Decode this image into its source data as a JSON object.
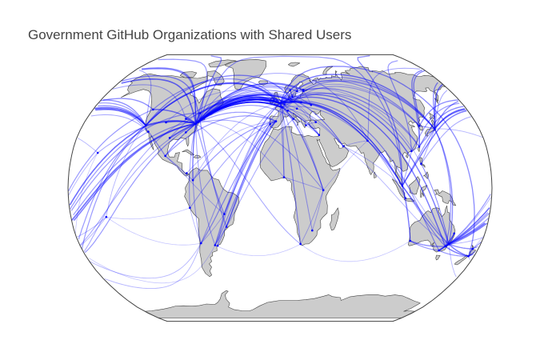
{
  "title": "Government GitHub Organizations with Shared Users",
  "colors": {
    "background": "#ffffff",
    "land": "#cccccc",
    "coastline": "#444444",
    "ocean": "#ffffff",
    "edge": "#0000ff",
    "node": "#0000ff",
    "title": "#444444"
  },
  "chart_data": {
    "type": "network-map",
    "projection": "robinson",
    "title": "Government GitHub Organizations with Shared Users",
    "edge_color": "#0000ff",
    "nodes": [
      {
        "id": "ottawa",
        "lon": -75.7,
        "lat": 45.4
      },
      {
        "id": "washington",
        "lon": -77.0,
        "lat": 38.9
      },
      {
        "id": "new-york",
        "lon": -74.0,
        "lat": 40.7
      },
      {
        "id": "boston",
        "lon": -71.1,
        "lat": 42.4
      },
      {
        "id": "chicago",
        "lon": -87.6,
        "lat": 41.9
      },
      {
        "id": "atlanta",
        "lon": -84.4,
        "lat": 33.7
      },
      {
        "id": "austin",
        "lon": -97.7,
        "lat": 30.3
      },
      {
        "id": "denver",
        "lon": -104.9,
        "lat": 39.7
      },
      {
        "id": "san-francisco",
        "lon": -122.4,
        "lat": 37.8
      },
      {
        "id": "los-angeles",
        "lon": -118.2,
        "lat": 34.1
      },
      {
        "id": "seattle",
        "lon": -122.3,
        "lat": 47.6
      },
      {
        "id": "honolulu",
        "lon": -157.9,
        "lat": 21.3
      },
      {
        "id": "mexico-city",
        "lon": -99.1,
        "lat": 19.4
      },
      {
        "id": "panama",
        "lon": -79.5,
        "lat": 9.0
      },
      {
        "id": "bogota",
        "lon": -74.1,
        "lat": 4.7
      },
      {
        "id": "lima",
        "lon": -77.0,
        "lat": -12.0
      },
      {
        "id": "brasilia",
        "lon": -47.9,
        "lat": -15.8
      },
      {
        "id": "sao-paulo",
        "lon": -46.6,
        "lat": -23.5
      },
      {
        "id": "santiago",
        "lon": -70.7,
        "lat": -33.4
      },
      {
        "id": "buenos-aires",
        "lon": -58.4,
        "lat": -34.6
      },
      {
        "id": "montevideo",
        "lon": -56.2,
        "lat": -34.9
      },
      {
        "id": "pacific",
        "lon": -149.6,
        "lat": -17.5
      },
      {
        "id": "london",
        "lon": -0.1,
        "lat": 51.5
      },
      {
        "id": "dublin",
        "lon": -6.3,
        "lat": 53.3
      },
      {
        "id": "paris",
        "lon": 2.35,
        "lat": 48.9
      },
      {
        "id": "brussels",
        "lon": 4.35,
        "lat": 50.85
      },
      {
        "id": "amsterdam",
        "lon": 4.9,
        "lat": 52.4
      },
      {
        "id": "berlin",
        "lon": 13.4,
        "lat": 52.5
      },
      {
        "id": "copenhagen",
        "lon": 12.6,
        "lat": 55.7
      },
      {
        "id": "oslo",
        "lon": 10.75,
        "lat": 59.9
      },
      {
        "id": "stockholm",
        "lon": 18.1,
        "lat": 59.3
      },
      {
        "id": "helsinki",
        "lon": 24.9,
        "lat": 60.2
      },
      {
        "id": "tallinn",
        "lon": 24.75,
        "lat": 59.4
      },
      {
        "id": "warsaw",
        "lon": 21.0,
        "lat": 52.2
      },
      {
        "id": "vienna",
        "lon": 16.4,
        "lat": 48.2
      },
      {
        "id": "bern",
        "lon": 7.45,
        "lat": 46.9
      },
      {
        "id": "madrid",
        "lon": -3.7,
        "lat": 40.4
      },
      {
        "id": "lisbon",
        "lon": -9.1,
        "lat": 38.7
      },
      {
        "id": "rome",
        "lon": 12.5,
        "lat": 41.9
      },
      {
        "id": "athens",
        "lon": 23.7,
        "lat": 38.0
      },
      {
        "id": "kyiv",
        "lon": 30.5,
        "lat": 50.45
      },
      {
        "id": "ankara",
        "lon": 32.9,
        "lat": 39.9
      },
      {
        "id": "tel-aviv",
        "lon": 34.8,
        "lat": 32.1
      },
      {
        "id": "dubai",
        "lon": 55.3,
        "lat": 25.2
      },
      {
        "id": "nairobi",
        "lon": 36.8,
        "lat": -1.3
      },
      {
        "id": "cape-town",
        "lon": 18.4,
        "lat": -33.9
      },
      {
        "id": "pretoria",
        "lon": 28.2,
        "lat": -25.7
      },
      {
        "id": "lagos",
        "lon": 3.4,
        "lat": 6.5
      },
      {
        "id": "delhi",
        "lon": 77.2,
        "lat": 28.6
      },
      {
        "id": "singapore",
        "lon": 103.8,
        "lat": 1.35
      },
      {
        "id": "jakarta",
        "lon": 106.8,
        "lat": -6.2
      },
      {
        "id": "manila",
        "lon": 121.0,
        "lat": 14.6
      },
      {
        "id": "hong-kong",
        "lon": 114.2,
        "lat": 22.3
      },
      {
        "id": "taipei",
        "lon": 121.5,
        "lat": 25.0
      },
      {
        "id": "seoul",
        "lon": 127.0,
        "lat": 37.6
      },
      {
        "id": "tokyo",
        "lon": 139.7,
        "lat": 35.7
      },
      {
        "id": "perth",
        "lon": 115.9,
        "lat": -31.95
      },
      {
        "id": "brisbane",
        "lon": 153.0,
        "lat": -27.5
      },
      {
        "id": "sydney",
        "lon": 151.2,
        "lat": -33.9
      },
      {
        "id": "canberra",
        "lon": 149.1,
        "lat": -35.3
      },
      {
        "id": "melbourne",
        "lon": 144.96,
        "lat": -37.8
      },
      {
        "id": "auckland",
        "lon": 174.8,
        "lat": -36.85
      },
      {
        "id": "wellington",
        "lon": 174.8,
        "lat": -41.3
      }
    ],
    "edges": [
      [
        "washington",
        "london",
        1.0
      ],
      [
        "washington",
        "paris",
        0.9
      ],
      [
        "washington",
        "berlin",
        0.8
      ],
      [
        "washington",
        "brussels",
        0.8
      ],
      [
        "washington",
        "amsterdam",
        0.7
      ],
      [
        "washington",
        "helsinki",
        0.7
      ],
      [
        "washington",
        "stockholm",
        0.6
      ],
      [
        "washington",
        "madrid",
        0.5
      ],
      [
        "washington",
        "rome",
        0.5
      ],
      [
        "washington",
        "tallinn",
        0.5
      ],
      [
        "washington",
        "tokyo",
        0.8
      ],
      [
        "washington",
        "seoul",
        0.6
      ],
      [
        "washington",
        "taipei",
        0.6
      ],
      [
        "washington",
        "singapore",
        0.6
      ],
      [
        "washington",
        "canberra",
        0.7
      ],
      [
        "washington",
        "sydney",
        0.8
      ],
      [
        "washington",
        "wellington",
        0.5
      ],
      [
        "washington",
        "auckland",
        0.4
      ],
      [
        "washington",
        "delhi",
        0.4
      ],
      [
        "washington",
        "nairobi",
        0.4
      ],
      [
        "washington",
        "cape-town",
        0.4
      ],
      [
        "washington",
        "brasilia",
        0.5
      ],
      [
        "washington",
        "buenos-aires",
        0.4
      ],
      [
        "washington",
        "santiago",
        0.4
      ],
      [
        "washington",
        "mexico-city",
        0.6
      ],
      [
        "washington",
        "bogota",
        0.5
      ],
      [
        "washington",
        "lima",
        0.4
      ],
      [
        "washington",
        "ottawa",
        0.9
      ],
      [
        "washington",
        "san-francisco",
        0.9
      ],
      [
        "washington",
        "seattle",
        0.7
      ],
      [
        "washington",
        "chicago",
        0.8
      ],
      [
        "washington",
        "austin",
        0.7
      ],
      [
        "washington",
        "denver",
        0.6
      ],
      [
        "washington",
        "atlanta",
        0.6
      ],
      [
        "washington",
        "honolulu",
        0.4
      ],
      [
        "washington",
        "dubai",
        0.3
      ],
      [
        "washington",
        "tel-aviv",
        0.4
      ],
      [
        "washington",
        "kyiv",
        0.3
      ],
      [
        "washington",
        "warsaw",
        0.4
      ],
      [
        "washington",
        "dublin",
        0.5
      ],
      [
        "new-york",
        "london",
        1.0
      ],
      [
        "new-york",
        "paris",
        0.8
      ],
      [
        "new-york",
        "berlin",
        0.7
      ],
      [
        "new-york",
        "amsterdam",
        0.6
      ],
      [
        "new-york",
        "tokyo",
        0.6
      ],
      [
        "new-york",
        "sydney",
        0.5
      ],
      [
        "new-york",
        "singapore",
        0.5
      ],
      [
        "new-york",
        "hong-kong",
        0.5
      ],
      [
        "new-york",
        "sao-paulo",
        0.5
      ],
      [
        "new-york",
        "tel-aviv",
        0.5
      ],
      [
        "new-york",
        "dubai",
        0.4
      ],
      [
        "new-york",
        "lagos",
        0.3
      ],
      [
        "boston",
        "london",
        0.6
      ],
      [
        "boston",
        "berlin",
        0.4
      ],
      [
        "boston",
        "oslo",
        0.4
      ],
      [
        "chicago",
        "london",
        0.5
      ],
      [
        "chicago",
        "tokyo",
        0.4
      ],
      [
        "san-francisco",
        "london",
        0.9
      ],
      [
        "san-francisco",
        "tokyo",
        0.9
      ],
      [
        "san-francisco",
        "sydney",
        0.8
      ],
      [
        "san-francisco",
        "singapore",
        0.7
      ],
      [
        "san-francisco",
        "seoul",
        0.6
      ],
      [
        "san-francisco",
        "taipei",
        0.6
      ],
      [
        "san-francisco",
        "berlin",
        0.6
      ],
      [
        "san-francisco",
        "paris",
        0.5
      ],
      [
        "san-francisco",
        "wellington",
        0.5
      ],
      [
        "san-francisco",
        "auckland",
        0.5
      ],
      [
        "san-francisco",
        "delhi",
        0.4
      ],
      [
        "san-francisco",
        "hong-kong",
        0.5
      ],
      [
        "seattle",
        "tokyo",
        0.6
      ],
      [
        "seattle",
        "sydney",
        0.5
      ],
      [
        "seattle",
        "london",
        0.5
      ],
      [
        "los-angeles",
        "sydney",
        0.5
      ],
      [
        "los-angeles",
        "tokyo",
        0.5
      ],
      [
        "los-angeles",
        "manila",
        0.4
      ],
      [
        "los-angeles",
        "mexico-city",
        0.5
      ],
      [
        "austin",
        "london",
        0.4
      ],
      [
        "denver",
        "london",
        0.3
      ],
      [
        "ottawa",
        "london",
        0.8
      ],
      [
        "ottawa",
        "paris",
        0.6
      ],
      [
        "ottawa",
        "canberra",
        0.5
      ],
      [
        "ottawa",
        "wellington",
        0.4
      ],
      [
        "mexico-city",
        "madrid",
        0.5
      ],
      [
        "mexico-city",
        "bogota",
        0.4
      ],
      [
        "mexico-city",
        "brasilia",
        0.3
      ],
      [
        "panama",
        "madrid",
        0.3
      ],
      [
        "bogota",
        "madrid",
        0.5
      ],
      [
        "bogota",
        "london",
        0.3
      ],
      [
        "lima",
        "madrid",
        0.4
      ],
      [
        "santiago",
        "madrid",
        0.5
      ],
      [
        "santiago",
        "london",
        0.4
      ],
      [
        "buenos-aires",
        "madrid",
        0.5
      ],
      [
        "buenos-aires",
        "london",
        0.4
      ],
      [
        "buenos-aires",
        "rome",
        0.4
      ],
      [
        "montevideo",
        "madrid",
        0.4
      ],
      [
        "brasilia",
        "lisbon",
        0.5
      ],
      [
        "brasilia",
        "london",
        0.4
      ],
      [
        "brasilia",
        "paris",
        0.4
      ],
      [
        "sao-paulo",
        "lisbon",
        0.5
      ],
      [
        "sao-paulo",
        "berlin",
        0.3
      ],
      [
        "brasilia",
        "buenos-aires",
        0.4
      ],
      [
        "brasilia",
        "santiago",
        0.3
      ],
      [
        "brasilia",
        "montevideo",
        0.3
      ],
      [
        "lima",
        "santiago",
        0.3
      ],
      [
        "london",
        "tokyo",
        0.7
      ],
      [
        "london",
        "sydney",
        0.7
      ],
      [
        "london",
        "canberra",
        0.7
      ],
      [
        "london",
        "wellington",
        0.6
      ],
      [
        "london",
        "singapore",
        0.6
      ],
      [
        "london",
        "delhi",
        0.6
      ],
      [
        "london",
        "nairobi",
        0.5
      ],
      [
        "london",
        "cape-town",
        0.5
      ],
      [
        "london",
        "pretoria",
        0.4
      ],
      [
        "london",
        "lagos",
        0.4
      ],
      [
        "london",
        "hong-kong",
        0.5
      ],
      [
        "london",
        "dubai",
        0.4
      ],
      [
        "london",
        "seoul",
        0.5
      ],
      [
        "london",
        "taipei",
        0.5
      ],
      [
        "london",
        "melbourne",
        0.5
      ],
      [
        "paris",
        "tokyo",
        0.5
      ],
      [
        "paris",
        "dubai",
        0.3
      ],
      [
        "paris",
        "lagos",
        0.4
      ],
      [
        "paris",
        "nairobi",
        0.3
      ],
      [
        "paris",
        "singapore",
        0.4
      ],
      [
        "berlin",
        "tokyo",
        0.5
      ],
      [
        "berlin",
        "seoul",
        0.4
      ],
      [
        "berlin",
        "singapore",
        0.4
      ],
      [
        "berlin",
        "delhi",
        0.3
      ],
      [
        "berlin",
        "taipei",
        0.4
      ],
      [
        "amsterdam",
        "jakarta",
        0.4
      ],
      [
        "amsterdam",
        "singapore",
        0.3
      ],
      [
        "brussels",
        "nairobi",
        0.3
      ],
      [
        "helsinki",
        "tokyo",
        0.4
      ],
      [
        "tallinn",
        "seoul",
        0.3
      ],
      [
        "stockholm",
        "sydney",
        0.3
      ],
      [
        "rome",
        "athens",
        0.3
      ],
      [
        "kyiv",
        "tallinn",
        0.3
      ],
      [
        "london",
        "paris",
        0.6
      ],
      [
        "london",
        "berlin",
        0.7
      ],
      [
        "paris",
        "berlin",
        0.6
      ],
      [
        "brussels",
        "berlin",
        0.5
      ],
      [
        "amsterdam",
        "berlin",
        0.5
      ],
      [
        "stockholm",
        "helsinki",
        0.5
      ],
      [
        "oslo",
        "copenhagen",
        0.4
      ],
      [
        "tallinn",
        "helsinki",
        0.5
      ],
      [
        "madrid",
        "lisbon",
        0.4
      ],
      [
        "bern",
        "vienna",
        0.3
      ],
      [
        "warsaw",
        "berlin",
        0.4
      ],
      [
        "dublin",
        "london",
        0.5
      ],
      [
        "rome",
        "paris",
        0.4
      ],
      [
        "athens",
        "ankara",
        0.3
      ],
      [
        "tel-aviv",
        "athens",
        0.3
      ],
      [
        "nairobi",
        "cape-town",
        0.3
      ],
      [
        "pretoria",
        "nairobi",
        0.3
      ],
      [
        "lagos",
        "nairobi",
        0.3
      ],
      [
        "delhi",
        "singapore",
        0.4
      ],
      [
        "tokyo",
        "seoul",
        0.5
      ],
      [
        "tokyo",
        "taipei",
        0.5
      ],
      [
        "tokyo",
        "singapore",
        0.5
      ],
      [
        "tokyo",
        "sydney",
        0.6
      ],
      [
        "tokyo",
        "canberra",
        0.5
      ],
      [
        "tokyo",
        "manila",
        0.4
      ],
      [
        "seoul",
        "taipei",
        0.4
      ],
      [
        "taipei",
        "hong-kong",
        0.4
      ],
      [
        "hong-kong",
        "singapore",
        0.4
      ],
      [
        "singapore",
        "jakarta",
        0.5
      ],
      [
        "singapore",
        "sydney",
        0.6
      ],
      [
        "singapore",
        "perth",
        0.5
      ],
      [
        "singapore",
        "canberra",
        0.5
      ],
      [
        "jakarta",
        "perth",
        0.4
      ],
      [
        "manila",
        "sydney",
        0.3
      ],
      [
        "sydney",
        "canberra",
        0.9
      ],
      [
        "sydney",
        "melbourne",
        0.8
      ],
      [
        "sydney",
        "brisbane",
        0.7
      ],
      [
        "canberra",
        "melbourne",
        0.8
      ],
      [
        "canberra",
        "perth",
        0.6
      ],
      [
        "melbourne",
        "perth",
        0.5
      ],
      [
        "brisbane",
        "canberra",
        0.6
      ],
      [
        "sydney",
        "wellington",
        0.7
      ],
      [
        "canberra",
        "wellington",
        0.7
      ],
      [
        "sydney",
        "auckland",
        0.6
      ],
      [
        "melbourne",
        "wellington",
        0.5
      ],
      [
        "auckland",
        "wellington",
        0.6
      ],
      [
        "honolulu",
        "sydney",
        0.3
      ],
      [
        "honolulu",
        "tokyo",
        0.3
      ],
      [
        "pacific",
        "sydney",
        0.3
      ],
      [
        "pacific",
        "san-francisco",
        0.3
      ],
      [
        "pacific",
        "auckland",
        0.3
      ],
      [
        "pacific",
        "santiago",
        0.2
      ],
      [
        "pacific",
        "lima",
        0.2
      ],
      [
        "honolulu",
        "auckland",
        0.2
      ],
      [
        "wellington",
        "santiago",
        0.3
      ],
      [
        "auckland",
        "buenos-aires",
        0.2
      ],
      [
        "sydney",
        "santiago",
        0.3
      ],
      [
        "cape-town",
        "perth",
        0.2
      ],
      [
        "cape-town",
        "buenos-aires",
        0.2
      ],
      [
        "dubai",
        "delhi",
        0.3
      ],
      [
        "dubai",
        "singapore",
        0.3
      ],
      [
        "dubai",
        "sydney",
        0.3
      ],
      [
        "delhi",
        "sydney",
        0.3
      ],
      [
        "nairobi",
        "delhi",
        0.2
      ],
      [
        "tel-aviv",
        "london",
        0.4
      ],
      [
        "tel-aviv",
        "berlin",
        0.3
      ],
      [
        "ankara",
        "berlin",
        0.3
      ],
      [
        "kyiv",
        "london",
        0.3
      ],
      [
        "kyiv",
        "washington",
        0.3
      ]
    ]
  }
}
